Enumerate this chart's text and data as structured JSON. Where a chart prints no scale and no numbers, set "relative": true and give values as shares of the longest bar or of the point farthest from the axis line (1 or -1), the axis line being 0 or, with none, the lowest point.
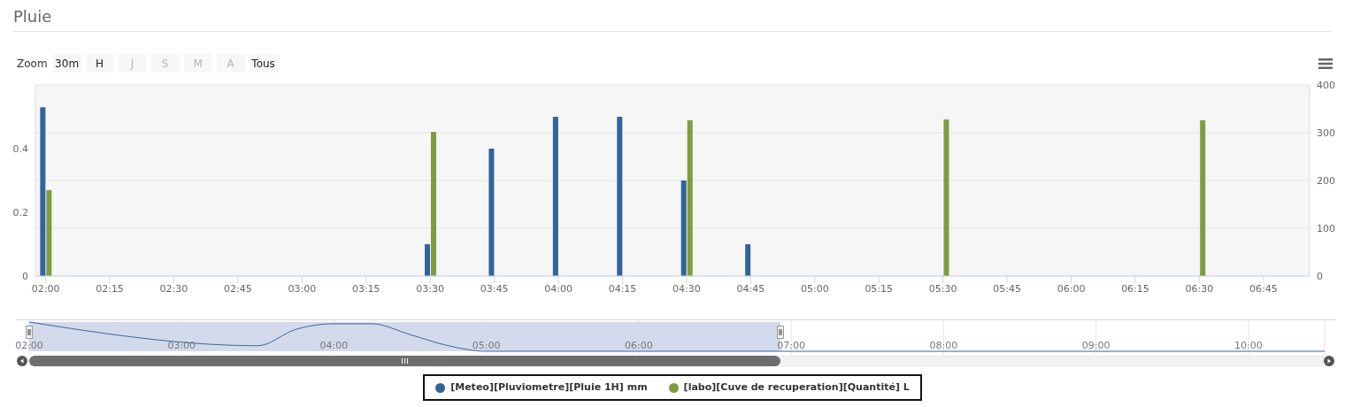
{
  "chart_data": [
    {
      "type": "bar",
      "title": "Pluie",
      "annotations": [
        "Zoom",
        "30m",
        "H",
        "J",
        "S",
        "M",
        "A",
        "Tous"
      ],
      "xlim": [
        1.96,
        6.93
      ],
      "xticks": [
        {
          "value": 2,
          "label": "02:00"
        },
        {
          "value": 2.25,
          "label": "02:15"
        },
        {
          "value": 2.5,
          "label": "02:30"
        },
        {
          "value": 2.75,
          "label": "02:45"
        },
        {
          "value": 3,
          "label": "03:00"
        },
        {
          "value": 3.25,
          "label": "03:15"
        },
        {
          "value": 3.5,
          "label": "03:30"
        },
        {
          "value": 3.75,
          "label": "03:45"
        },
        {
          "value": 4,
          "label": "04:00"
        },
        {
          "value": 4.25,
          "label": "04:15"
        },
        {
          "value": 4.5,
          "label": "04:30"
        },
        {
          "value": 4.75,
          "label": "04:45"
        },
        {
          "value": 5,
          "label": "05:00"
        },
        {
          "value": 5.25,
          "label": "05:15"
        },
        {
          "value": 5.5,
          "label": "05:30"
        },
        {
          "value": 5.75,
          "label": "05:45"
        },
        {
          "value": 6,
          "label": "06:00"
        },
        {
          "value": 6.25,
          "label": "06:15"
        },
        {
          "value": 6.5,
          "label": "06:30"
        },
        {
          "value": 6.75,
          "label": "06:45"
        }
      ],
      "ylim": [
        0,
        0.6
      ],
      "yticks": [
        0,
        0.2,
        0.4
      ],
      "y2lim": [
        0,
        400
      ],
      "y2ticks": [
        0,
        100,
        200,
        300,
        400
      ],
      "series": [
        {
          "name": "[Meteo][Pluviometre][Pluie 1H] mm",
          "color": "#33639b",
          "x": [
            2,
            3.5,
            3.75,
            4,
            4.25,
            4.5,
            4.75
          ],
          "values": [
            0.53,
            0.1,
            0.4,
            0.5,
            0.5,
            0.3,
            0.1
          ]
        },
        {
          "name": "[labo][Cuve de recuperation][Quantité] L",
          "color": "#7f9c41",
          "axis": "y2",
          "x": [
            2,
            3.5,
            4.5,
            5.5,
            6.5
          ],
          "values": [
            180,
            302,
            326,
            328,
            326
          ]
        }
      ],
      "grid": "y",
      "legend": "bottom"
    },
    {
      "type": "line",
      "relative": true,
      "xlim": [
        2,
        10.5
      ],
      "xticks": [
        {
          "value": 2,
          "label": "02:00"
        },
        {
          "value": 3,
          "label": "03:00"
        },
        {
          "value": 4,
          "label": "04:00"
        },
        {
          "value": 5,
          "label": "05:00"
        },
        {
          "value": 6,
          "label": "06:00"
        },
        {
          "value": 7,
          "label": "07:00"
        },
        {
          "value": 8,
          "label": "08:00"
        },
        {
          "value": 9,
          "label": "09:00"
        },
        {
          "value": 10,
          "label": "10:00"
        }
      ],
      "series": [
        {
          "color": "#3b679e",
          "x": [
            2,
            3.5,
            3.75,
            4,
            4.25,
            4.5,
            4.75,
            5,
            10.5
          ],
          "values": [
            1,
            0.19,
            0.75,
            0.94,
            0.94,
            0.57,
            0.19,
            0,
            0
          ]
        }
      ],
      "grid": "x",
      "bands": [
        {
          "axis": "x",
          "from": 2,
          "to": 6.93,
          "color": "#cbd4e8"
        }
      ]
    }
  ]
}
